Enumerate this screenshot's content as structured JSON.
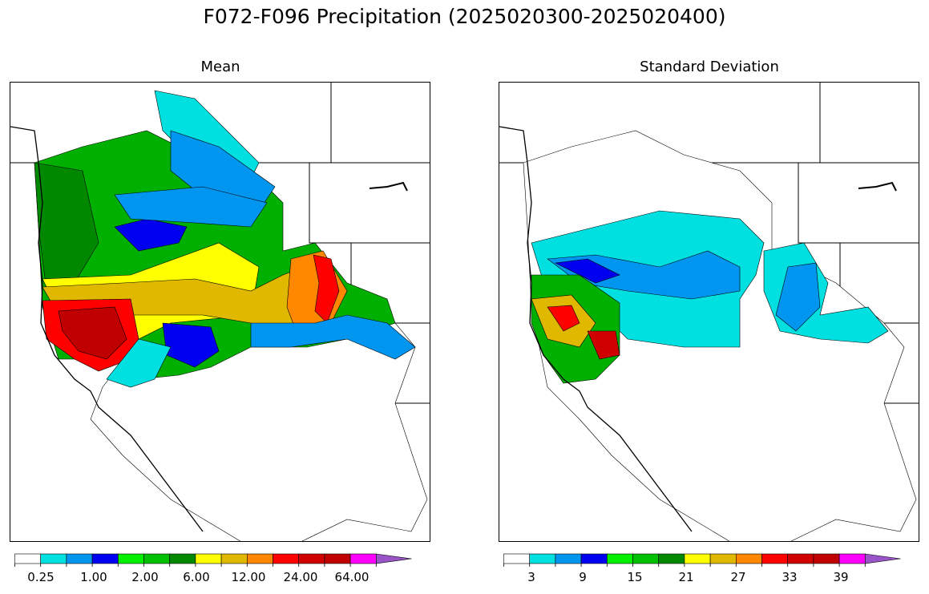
{
  "figure": {
    "title": "F072-F096 Precipitation (2025020300-2025020400)"
  },
  "panels": [
    {
      "id": "mean",
      "title": "Mean",
      "colorbar": {
        "colors": [
          "#ffffff",
          "#00e0e0",
          "#0096f0",
          "#0000f0",
          "#00f000",
          "#00c000",
          "#008800",
          "#ffff00",
          "#e0b800",
          "#ff8800",
          "#ff0000",
          "#d00000",
          "#c00000",
          "#ff00ff",
          "#9955c8"
        ],
        "tick_labels": [
          "0.25",
          "1.00",
          "2.00",
          "6.00",
          "12.00",
          "24.00",
          "64.00"
        ],
        "extend": "max"
      }
    },
    {
      "id": "std",
      "title": "Standard Deviation",
      "colorbar": {
        "colors": [
          "#ffffff",
          "#00e0e0",
          "#0096f0",
          "#0000f0",
          "#00f000",
          "#00c000",
          "#008800",
          "#ffff00",
          "#e0b800",
          "#ff8800",
          "#ff0000",
          "#d00000",
          "#c00000",
          "#ff00ff",
          "#9955c8"
        ],
        "tick_labels": [
          "3",
          "9",
          "15",
          "21",
          "27",
          "33",
          "39"
        ],
        "extend": "max"
      }
    }
  ]
}
